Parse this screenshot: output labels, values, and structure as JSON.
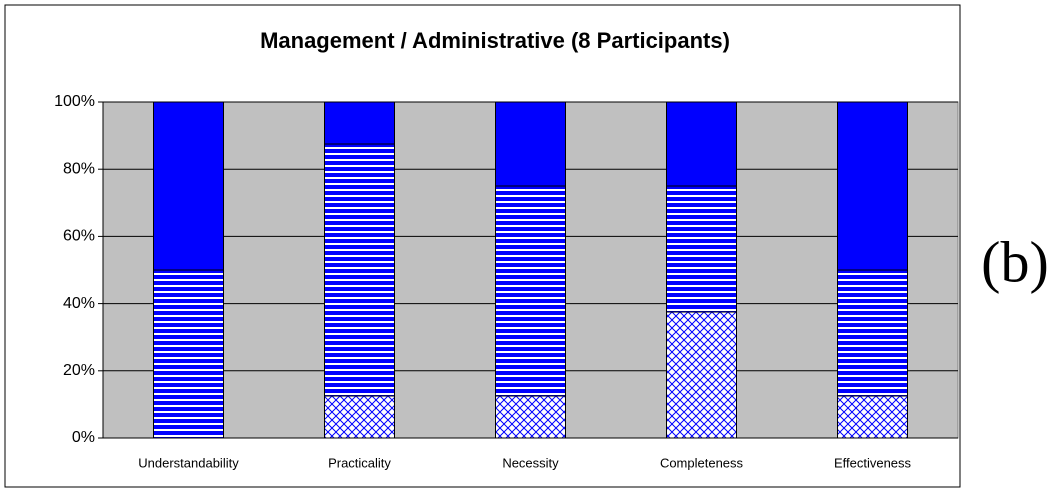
{
  "chart_data": {
    "type": "stacked_bar_100",
    "title": "Management / Administrative (8 Participants)",
    "annotation": "(b)",
    "categories": [
      "Understandability",
      "Practicality",
      "Necessity",
      "Completeness",
      "Effectiveness"
    ],
    "series": [
      {
        "color": "#0000ff",
        "pattern": "crosshatch",
        "values": [
          0,
          12.5,
          12.5,
          37.5,
          12.5
        ]
      },
      {
        "color": "#0000ff",
        "pattern": "horizontal-stripes",
        "values": [
          50,
          75,
          62.5,
          37.5,
          37.5
        ]
      },
      {
        "color": "#0000ff",
        "pattern": "solid",
        "values": [
          50,
          12.5,
          25,
          25,
          50
        ]
      }
    ],
    "ylim": [
      0,
      100
    ],
    "yticks": [
      {
        "value": 0,
        "label": "0%"
      },
      {
        "value": 20,
        "label": "20%"
      },
      {
        "value": 40,
        "label": "40%"
      },
      {
        "value": 60,
        "label": "60%"
      },
      {
        "value": 80,
        "label": "80%"
      },
      {
        "value": 100,
        "label": "100%"
      }
    ],
    "grid": true,
    "plot_background": "#c0c0c0"
  }
}
